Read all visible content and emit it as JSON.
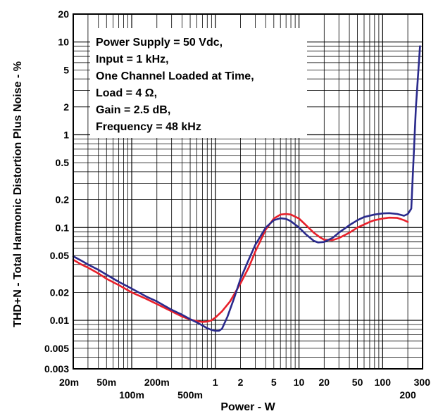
{
  "chart_data": {
    "type": "line",
    "title": "",
    "xlabel": "Power - W",
    "ylabel": "THD+N - Total Harmonic Distortion Plus Noise - %",
    "x_scale": "log",
    "y_scale": "log",
    "xlim": [
      0.02,
      300
    ],
    "ylim": [
      0.003,
      20
    ],
    "grid": true,
    "x_ticks": [
      {
        "value": 0.02,
        "label": "20m",
        "row": 1
      },
      {
        "value": 0.05,
        "label": "50m",
        "row": 1
      },
      {
        "value": 0.1,
        "label": "100m",
        "row": 2
      },
      {
        "value": 0.2,
        "label": "200m",
        "row": 1
      },
      {
        "value": 0.5,
        "label": "500m",
        "row": 2
      },
      {
        "value": 1,
        "label": "1",
        "row": 1
      },
      {
        "value": 2,
        "label": "2",
        "row": 1
      },
      {
        "value": 5,
        "label": "5",
        "row": 1
      },
      {
        "value": 10,
        "label": "10",
        "row": 1
      },
      {
        "value": 20,
        "label": "20",
        "row": 1
      },
      {
        "value": 50,
        "label": "50",
        "row": 1
      },
      {
        "value": 100,
        "label": "100",
        "row": 1
      },
      {
        "value": 200,
        "label": "200",
        "row": 2
      },
      {
        "value": 300,
        "label": "300",
        "row": 1
      }
    ],
    "y_ticks": [
      {
        "value": 0.003,
        "label": "0.003"
      },
      {
        "value": 0.005,
        "label": "0.005"
      },
      {
        "value": 0.01,
        "label": "0.01"
      },
      {
        "value": 0.02,
        "label": "0.02"
      },
      {
        "value": 0.05,
        "label": "0.05"
      },
      {
        "value": 0.1,
        "label": "0.1"
      },
      {
        "value": 0.2,
        "label": "0.2"
      },
      {
        "value": 0.5,
        "label": "0.5"
      },
      {
        "value": 1,
        "label": "1"
      },
      {
        "value": 2,
        "label": "2"
      },
      {
        "value": 5,
        "label": "5"
      },
      {
        "value": 10,
        "label": "10"
      },
      {
        "value": 20,
        "label": "20"
      }
    ],
    "annotation": [
      "Power Supply = 50 Vdc,",
      "Input = 1 kHz,",
      "One Channel Loaded at Time,",
      "Load = 4 Ω,",
      "Gain = 2.5 dB,",
      "Frequency = 48 kHz"
    ],
    "series": [
      {
        "color": "#e8202a",
        "x": [
          0.02,
          0.025,
          0.03,
          0.04,
          0.05,
          0.07,
          0.1,
          0.15,
          0.2,
          0.3,
          0.4,
          0.5,
          0.6,
          0.7,
          0.8,
          0.9,
          1.0,
          1.2,
          1.5,
          2,
          2.5,
          3,
          4,
          5,
          6,
          7,
          8,
          10,
          12,
          15,
          18,
          20,
          25,
          30,
          40,
          50,
          60,
          70,
          80,
          100,
          120,
          150,
          180,
          200
        ],
        "y": [
          0.045,
          0.04,
          0.037,
          0.032,
          0.028,
          0.024,
          0.02,
          0.017,
          0.015,
          0.0125,
          0.011,
          0.0102,
          0.0098,
          0.0096,
          0.0097,
          0.01,
          0.0107,
          0.0125,
          0.016,
          0.025,
          0.037,
          0.055,
          0.095,
          0.125,
          0.138,
          0.14,
          0.138,
          0.125,
          0.107,
          0.088,
          0.078,
          0.074,
          0.073,
          0.077,
          0.088,
          0.1,
          0.108,
          0.115,
          0.12,
          0.125,
          0.128,
          0.127,
          0.12,
          0.115
        ]
      },
      {
        "color": "#2a2a8c",
        "x": [
          0.02,
          0.025,
          0.03,
          0.04,
          0.05,
          0.07,
          0.1,
          0.15,
          0.2,
          0.3,
          0.4,
          0.5,
          0.6,
          0.7,
          0.8,
          0.9,
          1.0,
          1.1,
          1.2,
          1.4,
          1.7,
          2,
          2.5,
          3,
          4,
          5,
          6,
          7,
          8,
          10,
          12,
          15,
          17,
          20,
          25,
          30,
          40,
          50,
          60,
          80,
          100,
          120,
          150,
          180,
          200,
          220,
          250,
          280
        ],
        "y": [
          0.049,
          0.044,
          0.04,
          0.035,
          0.031,
          0.026,
          0.022,
          0.018,
          0.016,
          0.013,
          0.0115,
          0.0103,
          0.0095,
          0.0088,
          0.0082,
          0.0079,
          0.0077,
          0.0077,
          0.0081,
          0.011,
          0.018,
          0.028,
          0.045,
          0.065,
          0.1,
          0.12,
          0.126,
          0.124,
          0.117,
          0.1,
          0.085,
          0.072,
          0.069,
          0.07,
          0.077,
          0.088,
          0.106,
          0.12,
          0.13,
          0.138,
          0.142,
          0.143,
          0.14,
          0.134,
          0.14,
          0.16,
          2.0,
          9.0
        ]
      }
    ]
  }
}
